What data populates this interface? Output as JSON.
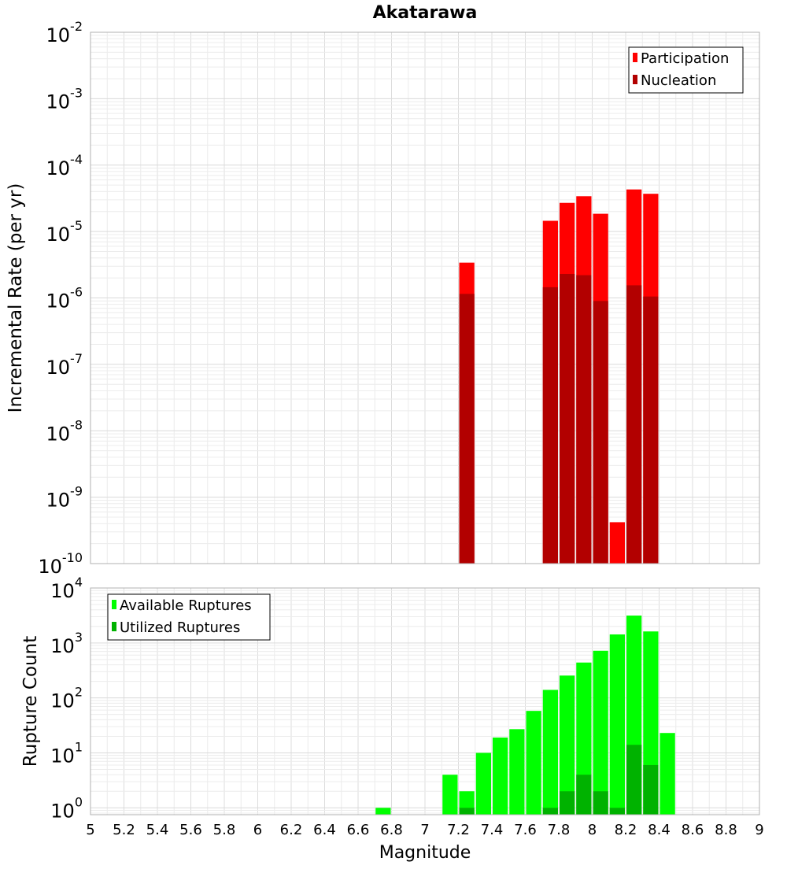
{
  "chart_data": [
    {
      "type": "bar",
      "title": "Akatarawa",
      "ylabel": "Incremental Rate (per yr)",
      "xlabel": "",
      "xlim": [
        5,
        9
      ],
      "ylim": [
        1e-10,
        0.01
      ],
      "yscale": "log",
      "grid": true,
      "legend_position": "top-right",
      "bar_width": 0.1,
      "y_ticks": [
        {
          "exp": "-10",
          "value": 1e-10
        },
        {
          "exp": "-9",
          "value": 1e-09
        },
        {
          "exp": "-8",
          "value": 1e-08
        },
        {
          "exp": "-7",
          "value": 1e-07
        },
        {
          "exp": "-6",
          "value": 1e-06
        },
        {
          "exp": "-5",
          "value": 1e-05
        },
        {
          "exp": "-4",
          "value": 0.0001
        },
        {
          "exp": "-3",
          "value": 0.001
        },
        {
          "exp": "-2",
          "value": 0.01
        }
      ],
      "series": [
        {
          "name": "Participation",
          "color": "#ff0000",
          "points": [
            {
              "x": 7.25,
              "y": 3.4e-06
            },
            {
              "x": 7.75,
              "y": 1.45e-05
            },
            {
              "x": 7.85,
              "y": 2.7e-05
            },
            {
              "x": 7.95,
              "y": 3.4e-05
            },
            {
              "x": 8.05,
              "y": 1.85e-05
            },
            {
              "x": 8.15,
              "y": 4.2e-10
            },
            {
              "x": 8.25,
              "y": 4.3e-05
            },
            {
              "x": 8.35,
              "y": 3.7e-05
            }
          ]
        },
        {
          "name": "Nucleation",
          "color": "#b20000",
          "points": [
            {
              "x": 7.25,
              "y": 1.15e-06
            },
            {
              "x": 7.75,
              "y": 1.45e-06
            },
            {
              "x": 7.85,
              "y": 2.3e-06
            },
            {
              "x": 7.95,
              "y": 2.2e-06
            },
            {
              "x": 8.05,
              "y": 9e-07
            },
            {
              "x": 8.25,
              "y": 1.55e-06
            },
            {
              "x": 8.35,
              "y": 1.05e-06
            }
          ]
        }
      ]
    },
    {
      "type": "bar",
      "title": "",
      "ylabel": "Rupture Count",
      "xlabel": "Magnitude",
      "xlim": [
        5,
        9
      ],
      "ylim": [
        0.75,
        10000
      ],
      "yscale": "log",
      "grid": true,
      "legend_position": "top-left",
      "bar_width": 0.1,
      "x_ticks": [
        "5",
        "5.2",
        "5.4",
        "5.6",
        "5.8",
        "6",
        "6.2",
        "6.4",
        "6.6",
        "6.8",
        "7",
        "7.2",
        "7.4",
        "7.6",
        "7.8",
        "8",
        "8.2",
        "8.4",
        "8.6",
        "8.8",
        "9"
      ],
      "y_ticks": [
        {
          "exp": "0",
          "value": 1
        },
        {
          "exp": "1",
          "value": 10
        },
        {
          "exp": "2",
          "value": 100
        },
        {
          "exp": "3",
          "value": 1000
        },
        {
          "exp": "4",
          "value": 10000
        }
      ],
      "series": [
        {
          "name": "Available Ruptures",
          "color": "#00ff00",
          "points": [
            {
              "x": 6.75,
              "y": 1
            },
            {
              "x": 7.15,
              "y": 4
            },
            {
              "x": 7.25,
              "y": 2
            },
            {
              "x": 7.35,
              "y": 10
            },
            {
              "x": 7.45,
              "y": 19
            },
            {
              "x": 7.55,
              "y": 27
            },
            {
              "x": 7.65,
              "y": 58
            },
            {
              "x": 7.75,
              "y": 140
            },
            {
              "x": 7.85,
              "y": 255
            },
            {
              "x": 7.95,
              "y": 440
            },
            {
              "x": 8.05,
              "y": 720
            },
            {
              "x": 8.15,
              "y": 1430
            },
            {
              "x": 8.25,
              "y": 3150
            },
            {
              "x": 8.35,
              "y": 1620
            },
            {
              "x": 8.45,
              "y": 23
            }
          ]
        },
        {
          "name": "Utilized Ruptures",
          "color": "#00b200",
          "points": [
            {
              "x": 7.25,
              "y": 1
            },
            {
              "x": 7.75,
              "y": 1
            },
            {
              "x": 7.85,
              "y": 2
            },
            {
              "x": 7.95,
              "y": 4
            },
            {
              "x": 8.05,
              "y": 2
            },
            {
              "x": 8.15,
              "y": 1
            },
            {
              "x": 8.25,
              "y": 14
            },
            {
              "x": 8.35,
              "y": 6
            }
          ]
        }
      ]
    }
  ]
}
